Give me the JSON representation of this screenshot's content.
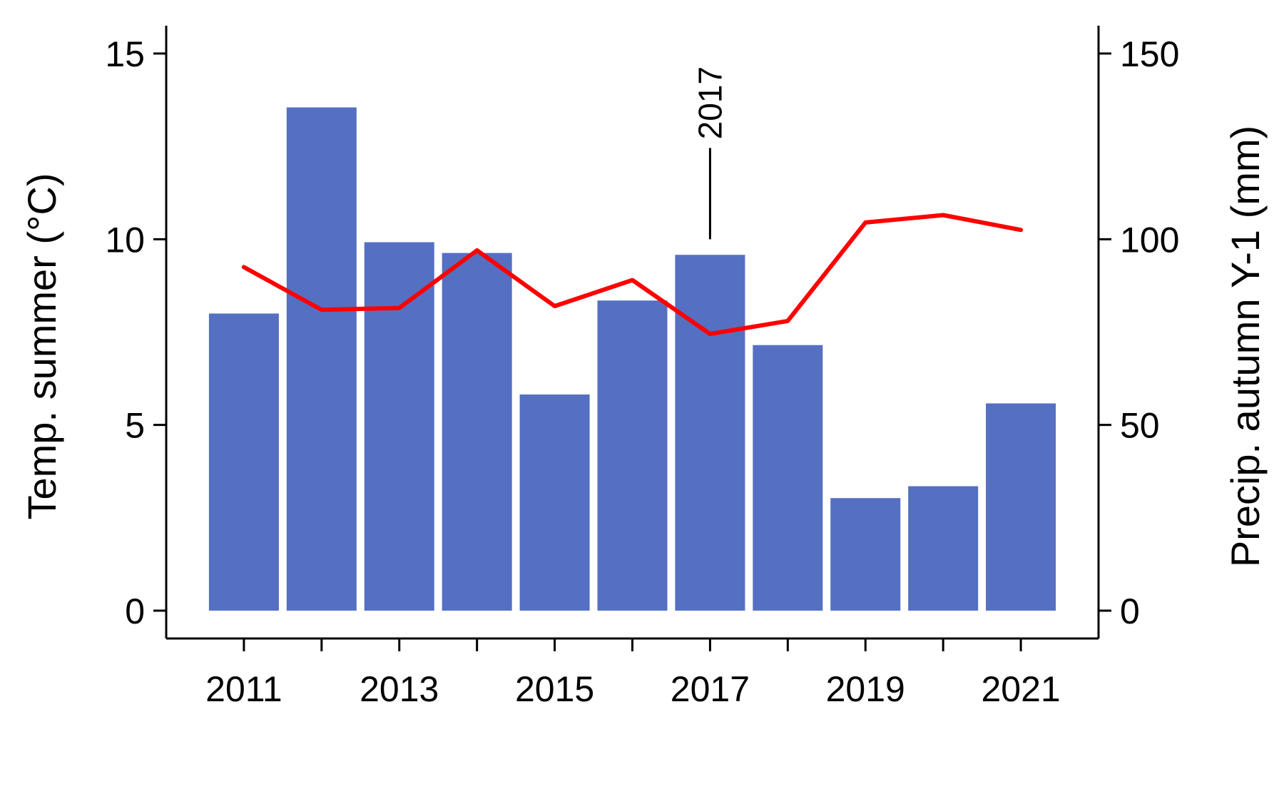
{
  "chart_data": {
    "type": "bar",
    "categories": [
      2011,
      2012,
      2013,
      2014,
      2015,
      2016,
      2017,
      2018,
      2019,
      2020,
      2021
    ],
    "x_tick_labels": [
      "2011",
      "2013",
      "2015",
      "2017",
      "2019",
      "2021"
    ],
    "left_axis": {
      "label": "Temp. summer (°C)",
      "ylim": [
        -0.75,
        15.75
      ],
      "ticks": [
        "0",
        "5",
        "10",
        "15"
      ]
    },
    "right_axis": {
      "label": "Precip. autumn Y-1 (mm)",
      "ylim": [
        -7.5,
        157.5
      ],
      "ticks": [
        "0",
        "50",
        "100",
        "150"
      ]
    },
    "series": [
      {
        "type": "bar",
        "axis": "left",
        "color": "#5570c2",
        "values": [
          8.0,
          13.55,
          9.92,
          9.63,
          5.82,
          8.35,
          9.58,
          7.15,
          3.03,
          3.35,
          5.58
        ]
      },
      {
        "type": "line",
        "axis": "right",
        "color": "#ff0000",
        "values": [
          92.5,
          81.0,
          81.5,
          97.0,
          82.0,
          89.0,
          74.5,
          78.0,
          104.5,
          106.5,
          102.5
        ]
      }
    ],
    "annotation": {
      "text": "2017",
      "x": 2017,
      "y_left": 10
    }
  }
}
